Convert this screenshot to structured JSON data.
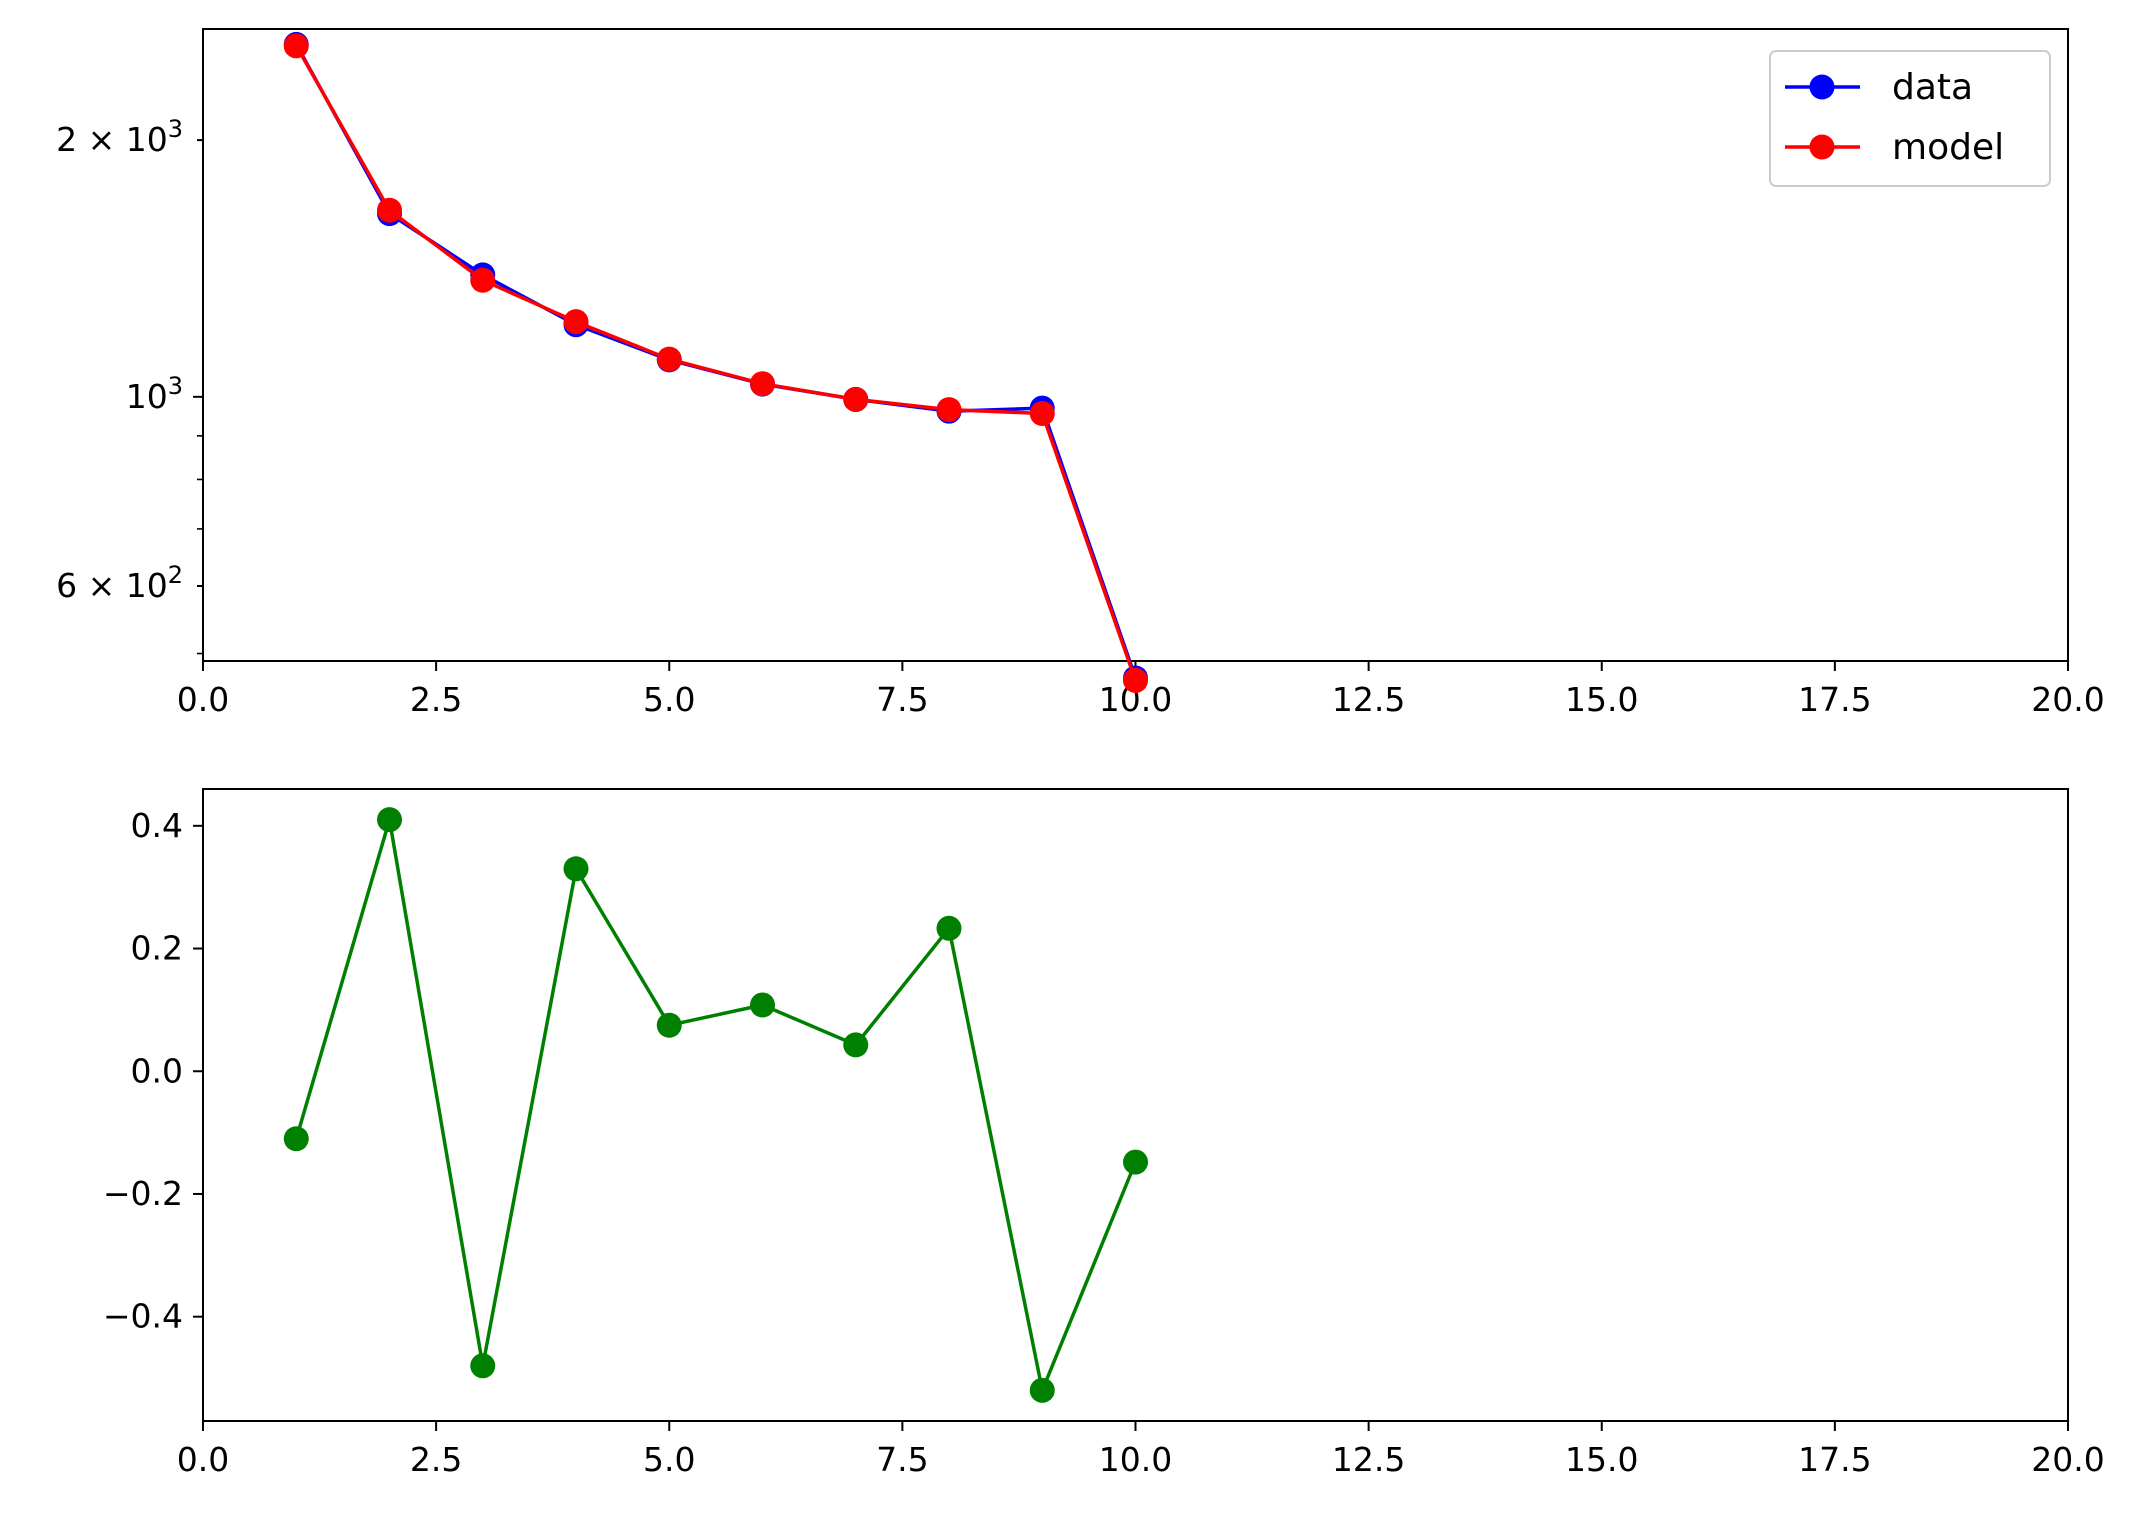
{
  "chart_data": [
    {
      "type": "line",
      "title": "",
      "xlabel": "",
      "ylabel": "",
      "yscale": "log",
      "xlim": [
        0,
        20
      ],
      "ylim": [
        490,
        2700
      ],
      "grid": false,
      "legend": "top-right",
      "x_ticks": [
        "0.0",
        "2.5",
        "5.0",
        "7.5",
        "10.0",
        "12.5",
        "15.0",
        "17.5",
        "20.0"
      ],
      "y_ticks": [
        {
          "value": 600,
          "mantissa": "6",
          "exp": "2"
        },
        {
          "value": 1000,
          "mantissa": "",
          "exp": "3"
        },
        {
          "value": 2000,
          "mantissa": "2",
          "exp": "3"
        }
      ],
      "x": [
        1,
        2,
        3,
        4,
        5,
        6,
        7,
        8,
        9,
        10
      ],
      "series": [
        {
          "name": "data",
          "color": "#0000ff",
          "values": [
            2590,
            1640,
            1390,
            1215,
            1105,
            1035,
            993,
            962,
            970,
            468
          ]
        },
        {
          "name": "model",
          "color": "#ff0000",
          "values": [
            2580,
            1655,
            1370,
            1225,
            1107,
            1036,
            993,
            966,
            956,
            465
          ]
        }
      ]
    },
    {
      "type": "line",
      "title": "",
      "xlabel": "",
      "ylabel": "",
      "yscale": "linear",
      "xlim": [
        0,
        20
      ],
      "ylim": [
        -0.57,
        0.46
      ],
      "grid": false,
      "x_ticks": [
        "0.0",
        "2.5",
        "5.0",
        "7.5",
        "10.0",
        "12.5",
        "15.0",
        "17.5",
        "20.0"
      ],
      "y_ticks": [
        {
          "value": -0.4,
          "label": "−0.4"
        },
        {
          "value": -0.2,
          "label": "−0.2"
        },
        {
          "value": 0.0,
          "label": "0.0"
        },
        {
          "value": 0.2,
          "label": "0.2"
        },
        {
          "value": 0.4,
          "label": "0.4"
        }
      ],
      "x": [
        1,
        2,
        3,
        4,
        5,
        6,
        7,
        8,
        9,
        10
      ],
      "series": [
        {
          "color": "#008000",
          "values": [
            -0.11,
            0.41,
            -0.48,
            0.33,
            0.075,
            0.108,
            0.043,
            0.233,
            -0.52,
            -0.148
          ]
        }
      ]
    }
  ]
}
